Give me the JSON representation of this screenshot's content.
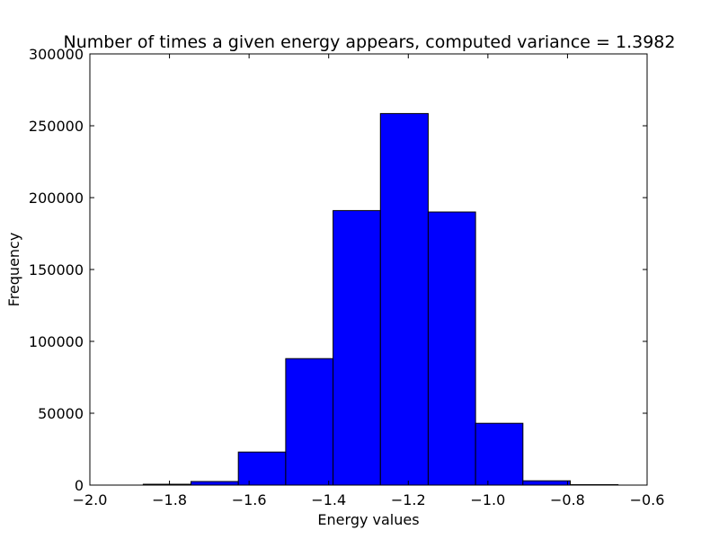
{
  "chart_data": {
    "type": "bar",
    "title": "Number of times a given energy appears, computed variance = 1.3982",
    "xlabel": "Energy values",
    "ylabel": "Frequency",
    "xlim": [
      -2.0,
      -0.6
    ],
    "ylim": [
      0,
      300000
    ],
    "grid": false,
    "bar_color": "#0000ff",
    "edge_color": "#000000",
    "x_ticks": [
      {
        "value": -2.0,
        "label": "−2.0"
      },
      {
        "value": -1.8,
        "label": "−1.8"
      },
      {
        "value": -1.6,
        "label": "−1.6"
      },
      {
        "value": -1.4,
        "label": "−1.4"
      },
      {
        "value": -1.2,
        "label": "−1.2"
      },
      {
        "value": -1.0,
        "label": "−1.0"
      },
      {
        "value": -0.8,
        "label": "−0.8"
      },
      {
        "value": -0.6,
        "label": "−0.6"
      }
    ],
    "y_ticks": [
      {
        "value": 0,
        "label": "0"
      },
      {
        "value": 50000,
        "label": "50000"
      },
      {
        "value": 100000,
        "label": "100000"
      },
      {
        "value": 150000,
        "label": "150000"
      },
      {
        "value": 200000,
        "label": "200000"
      },
      {
        "value": 250000,
        "label": "250000"
      },
      {
        "value": 300000,
        "label": "300000"
      }
    ],
    "bins": [
      {
        "x0": -1.866,
        "x1": -1.746,
        "value": 600
      },
      {
        "x0": -1.746,
        "x1": -1.627,
        "value": 2500
      },
      {
        "x0": -1.627,
        "x1": -1.508,
        "value": 23000
      },
      {
        "x0": -1.508,
        "x1": -1.389,
        "value": 88000
      },
      {
        "x0": -1.389,
        "x1": -1.27,
        "value": 191000
      },
      {
        "x0": -1.27,
        "x1": -1.15,
        "value": 258500
      },
      {
        "x0": -1.15,
        "x1": -1.031,
        "value": 190000
      },
      {
        "x0": -1.031,
        "x1": -0.912,
        "value": 43000
      },
      {
        "x0": -0.912,
        "x1": -0.793,
        "value": 3000
      },
      {
        "x0": -0.793,
        "x1": -0.673,
        "value": 300
      }
    ]
  }
}
